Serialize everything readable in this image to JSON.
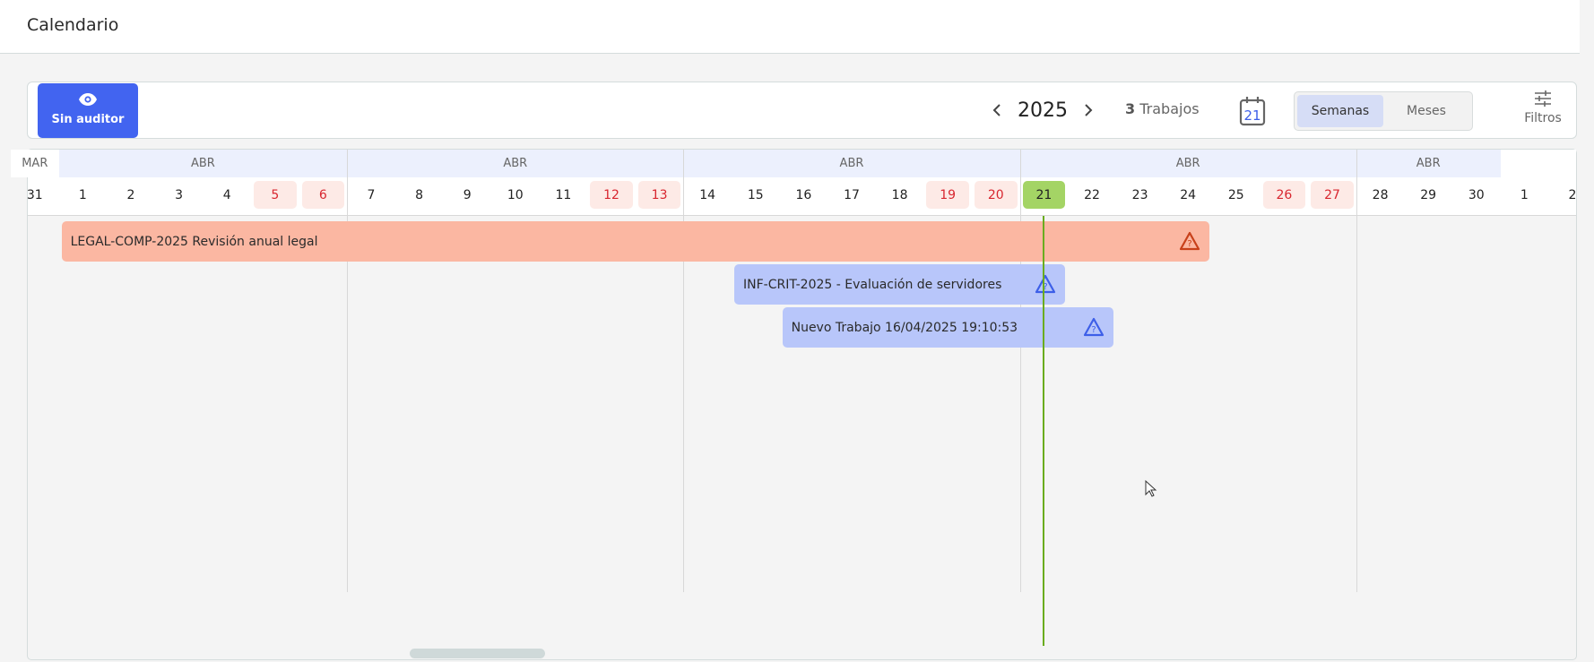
{
  "header": {
    "title": "Calendario"
  },
  "toolbar": {
    "auditor_button": {
      "label": "Sin auditor",
      "icon": "eye-icon"
    },
    "year": "2025",
    "jobs_count": "3",
    "jobs_label": "Trabajos",
    "calendar_icon_day": "21",
    "view_toggle": [
      {
        "label": "Semanas",
        "active": true
      },
      {
        "label": "Meses",
        "active": false
      }
    ],
    "filters_label": "Filtros"
  },
  "calendar": {
    "months": [
      {
        "label": "MAR",
        "from": 0,
        "to": 0,
        "highlight": false
      },
      {
        "label": "ABR",
        "from": 1,
        "to": 6,
        "highlight": true
      },
      {
        "label": "ABR",
        "from": 7,
        "to": 13,
        "highlight": true
      },
      {
        "label": "ABR",
        "from": 14,
        "to": 20,
        "highlight": true
      },
      {
        "label": "ABR",
        "from": 21,
        "to": 27,
        "highlight": true
      },
      {
        "label": "ABR",
        "from": 28,
        "to": 30,
        "highlight": true
      }
    ],
    "days": [
      "31",
      "1",
      "2",
      "3",
      "4",
      "5",
      "6",
      "7",
      "8",
      "9",
      "10",
      "11",
      "12",
      "13",
      "14",
      "15",
      "16",
      "17",
      "18",
      "19",
      "20",
      "21",
      "22",
      "23",
      "24",
      "25",
      "26",
      "27",
      "28",
      "29",
      "30",
      "1",
      "2"
    ],
    "weekend_days": [
      "5",
      "6",
      "12",
      "13",
      "19",
      "20",
      "26",
      "27"
    ],
    "today": "21",
    "week_starts": [
      "7",
      "14",
      "21",
      "28"
    ],
    "jobs": [
      {
        "label": "LEGAL-COMP-2025 Revisión anual legal",
        "start": "2025-04-01",
        "end": "2025-04-24",
        "color": "#fbb7a2",
        "icon": "warning-question-icon",
        "icon_color": "#c8401a"
      },
      {
        "label": "INF-CRIT-2025 - Evaluación de servidores",
        "start": "2025-04-15",
        "end": "2025-04-21",
        "color": "#b8c6fa",
        "icon": "warning-question-icon",
        "icon_color": "#3d5fe8"
      },
      {
        "label": "Nuevo Trabajo 16/04/2025 19:10:53",
        "start": "2025-04-16",
        "end": "2025-04-22",
        "color": "#b8c6fa",
        "icon": "warning-question-icon",
        "icon_color": "#3d5fe8"
      }
    ],
    "colors": {
      "today": "#a4d465",
      "today_line": "#6aac1e",
      "weekend_bg": "#fdeae6",
      "weekend_text": "#d8262f",
      "month_bg": "#ecf0fd",
      "accent": "#4264f0"
    }
  }
}
